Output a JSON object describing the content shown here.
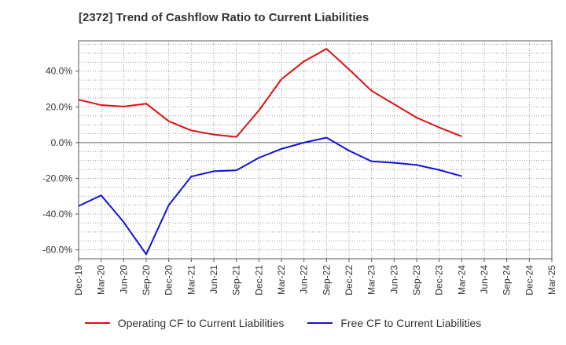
{
  "chart_data": {
    "type": "line",
    "title": "[2372]  Trend of Cashflow Ratio to Current Liabilities",
    "xlabel": "",
    "ylabel": "",
    "grid": true,
    "legend_position": "bottom",
    "categories": [
      "Dec-19",
      "Mar-20",
      "Jun-20",
      "Sep-20",
      "Dec-20",
      "Mar-21",
      "Jun-21",
      "Sep-21",
      "Dec-21",
      "Mar-22",
      "Jun-22",
      "Sep-22",
      "Dec-22",
      "Mar-23",
      "Jun-23",
      "Sep-23",
      "Dec-23",
      "Mar-24",
      "Jun-24",
      "Sep-24",
      "Dec-24",
      "Mar-25"
    ],
    "ylim": [
      -65,
      57
    ],
    "yticks": [
      40,
      20,
      0,
      -20,
      -40,
      -60
    ],
    "ytick_labels": [
      "40.0%",
      "20.0%",
      "0.0%",
      "-20.0%",
      "-40.0%",
      "-60.0%"
    ],
    "series": [
      {
        "name": "Operating CF to Current Liabilities",
        "color": "#dd1111",
        "values": [
          24,
          21,
          20.2,
          21.8,
          12,
          6.8,
          4.5,
          3.2,
          18,
          35.5,
          45.5,
          52.5,
          41,
          29,
          21.5,
          14,
          8.5,
          3.5,
          null,
          null,
          null,
          null
        ]
      },
      {
        "name": "Free CF to Current Liabilities",
        "color": "#1111dd",
        "values": [
          -35.5,
          -29.5,
          -44.5,
          -62.5,
          -35,
          -19,
          -16,
          -15.5,
          -8.5,
          -3.5,
          0,
          2.8,
          -4.5,
          -10.5,
          -11.3,
          -12.5,
          -15.3,
          -18.8,
          null,
          null,
          null,
          null
        ]
      }
    ]
  }
}
